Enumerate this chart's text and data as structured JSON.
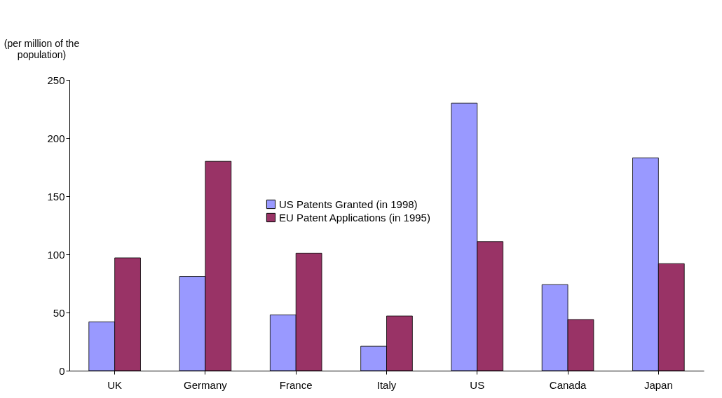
{
  "chart_data": {
    "type": "bar",
    "ylabel": "(per million of the population)",
    "categories": [
      "UK",
      "Germany",
      "France",
      "Italy",
      "US",
      "Canada",
      "Japan"
    ],
    "series": [
      {
        "name": "US Patents Granted (in 1998)",
        "color": "#9999ff",
        "values": [
          42,
          81,
          48,
          21,
          230,
          74,
          183
        ]
      },
      {
        "name": "EU Patent Applications (in 1995)",
        "color": "#993366",
        "values": [
          97,
          180,
          101,
          47,
          111,
          44,
          92
        ]
      }
    ],
    "ylim": [
      0,
      250
    ],
    "yticks": [
      0,
      50,
      100,
      150,
      200,
      250
    ],
    "grid": false,
    "legend": "center"
  }
}
